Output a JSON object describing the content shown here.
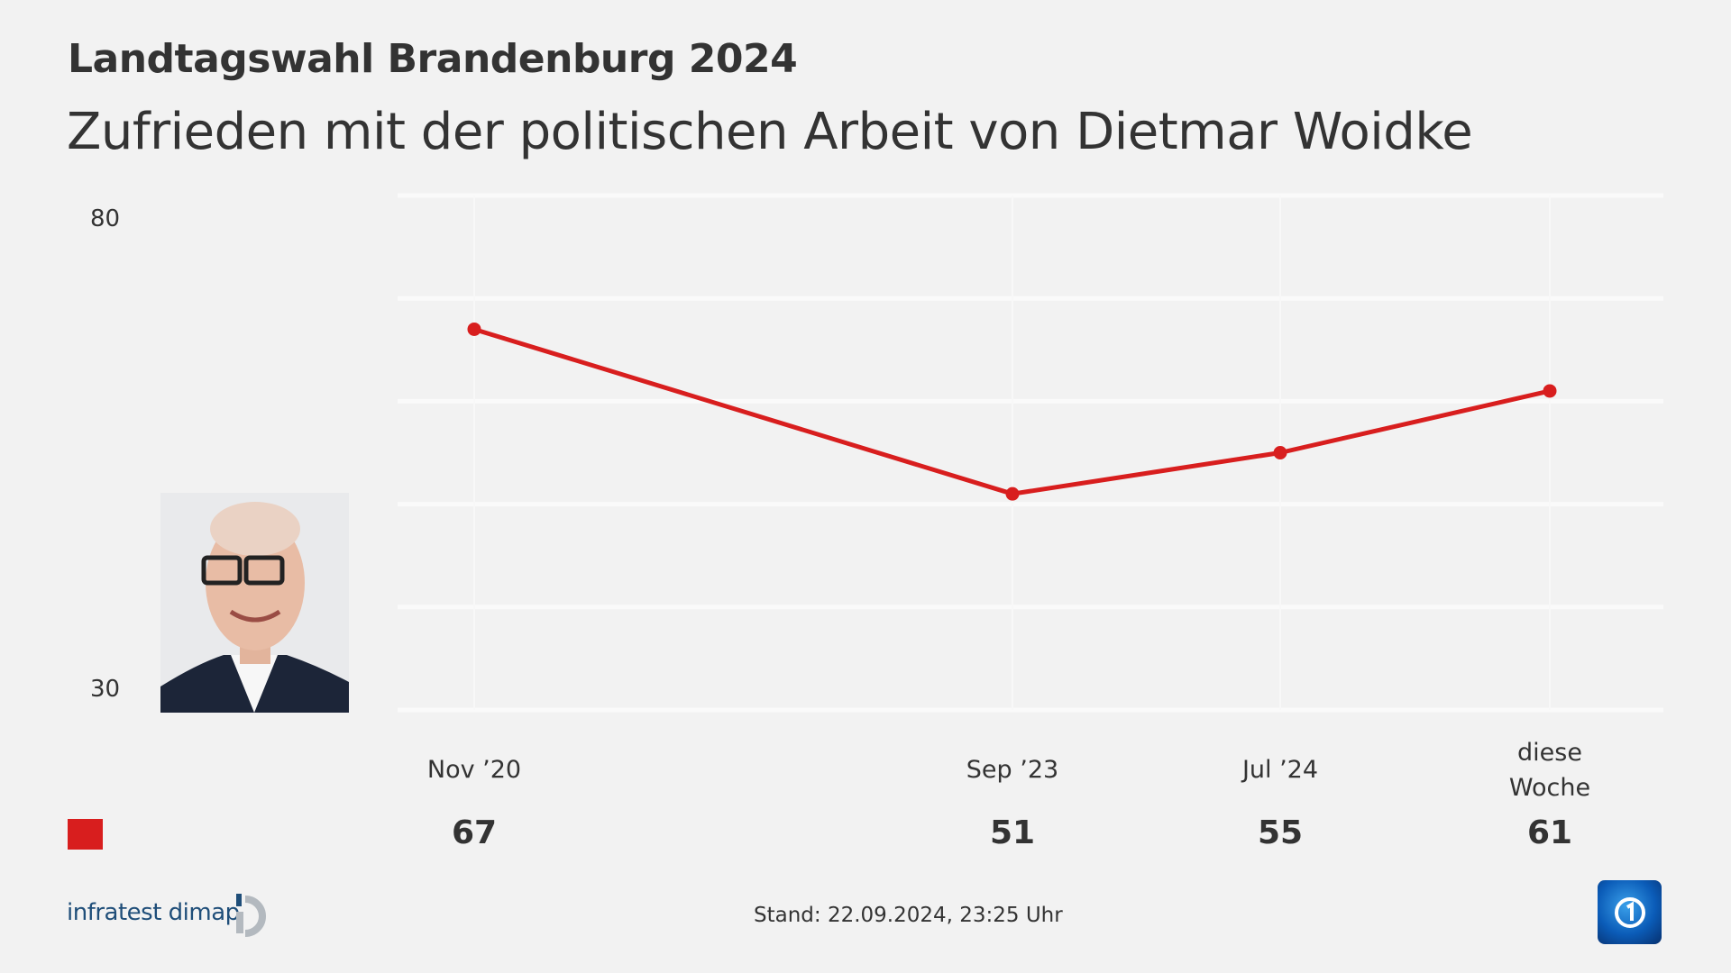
{
  "header": {
    "title": "Landtagswahl Brandenburg 2024",
    "subtitle": "Zufrieden mit der politischen Arbeit von Dietmar Woidke"
  },
  "chart_data": {
    "type": "line",
    "title": "Zufrieden mit der politischen Arbeit von Dietmar Woidke",
    "categories": [
      "Nov ’20",
      "Sep ’23",
      "Jul ’24",
      "diese Woche"
    ],
    "category_lines": [
      [
        "Nov ’20"
      ],
      [
        "Sep ’23"
      ],
      [
        "Jul ’24"
      ],
      [
        "diese",
        "Woche"
      ]
    ],
    "series": [
      {
        "values": [
          67,
          51,
          55,
          61
        ],
        "color": "#d81e1e"
      }
    ],
    "value_labels": [
      "67",
      "51",
      "55",
      "61"
    ],
    "ylim": [
      30,
      80
    ],
    "yticks_labeled": [
      "80",
      "30"
    ],
    "gridlines": [
      30,
      40,
      50,
      60,
      70,
      80
    ],
    "grid": true,
    "x_spacing": "time-proportional"
  },
  "legend": {
    "color": "#d81e1e"
  },
  "footer": {
    "source_logo": "infratest dimap",
    "stand": "Stand:  22.09.2024, 23:25 Uhr",
    "broadcaster_logo": "ARD tagesschau 1"
  },
  "photo": {
    "subject": "portrait"
  }
}
